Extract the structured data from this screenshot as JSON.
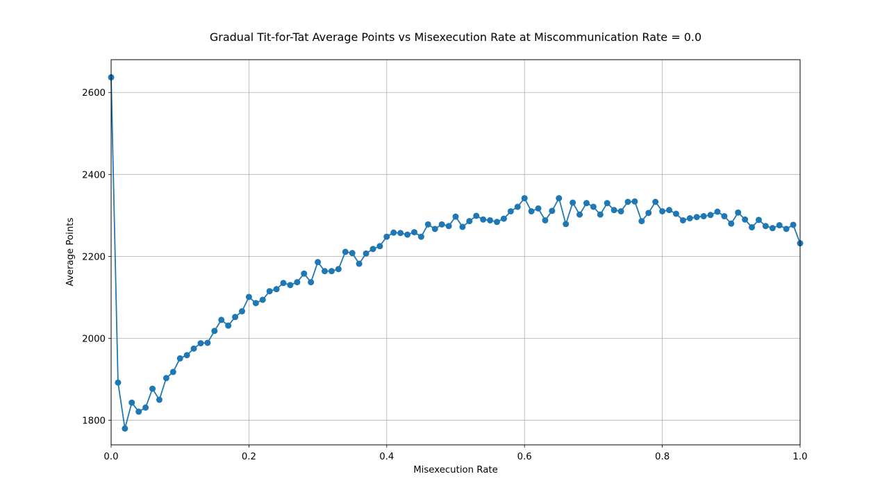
{
  "chart_data": {
    "type": "line",
    "title": "Gradual Tit-for-Tat Average Points vs Misexecution Rate at Miscommunication Rate = 0.0",
    "xlabel": "Misexecution Rate",
    "ylabel": "Average Points",
    "xlim": [
      0.0,
      1.0
    ],
    "ylim": [
      1740,
      2680
    ],
    "x_ticks": [
      "0.0",
      "0.2",
      "0.4",
      "0.6",
      "0.8",
      "1.0"
    ],
    "y_ticks": [
      "1800",
      "2000",
      "2200",
      "2400",
      "2600"
    ],
    "grid": true,
    "legend": "none",
    "color": "#1f77b4",
    "marker": "circle",
    "series": [
      {
        "x": [
          0.0,
          0.01,
          0.02,
          0.03,
          0.04,
          0.05,
          0.06,
          0.07,
          0.08,
          0.09,
          0.1,
          0.11,
          0.12,
          0.13,
          0.14,
          0.15,
          0.16,
          0.17,
          0.18,
          0.19,
          0.2,
          0.21,
          0.22,
          0.23,
          0.24,
          0.25,
          0.26,
          0.27,
          0.28,
          0.29,
          0.3,
          0.31,
          0.32,
          0.33,
          0.34,
          0.35,
          0.36,
          0.37,
          0.38,
          0.39,
          0.4,
          0.41,
          0.42,
          0.43,
          0.44,
          0.45,
          0.46,
          0.47,
          0.48,
          0.49,
          0.5,
          0.51,
          0.52,
          0.53,
          0.54,
          0.55,
          0.56,
          0.57,
          0.58,
          0.59,
          0.6,
          0.61,
          0.62,
          0.63,
          0.64,
          0.65,
          0.66,
          0.67,
          0.68,
          0.69,
          0.7,
          0.71,
          0.72,
          0.73,
          0.74,
          0.75,
          0.76,
          0.77,
          0.78,
          0.79,
          0.8,
          0.81,
          0.82,
          0.83,
          0.84,
          0.85,
          0.86,
          0.87,
          0.88,
          0.89,
          0.9,
          0.91,
          0.92,
          0.93,
          0.94,
          0.95,
          0.96,
          0.97,
          0.98,
          0.99,
          1.0
        ],
        "y": [
          2637,
          1892,
          1780,
          1843,
          1821,
          1831,
          1877,
          1850,
          1903,
          1918,
          1951,
          1959,
          1975,
          1988,
          1989,
          2018,
          2045,
          2031,
          2052,
          2066,
          2101,
          2086,
          2094,
          2115,
          2120,
          2135,
          2130,
          2137,
          2158,
          2137,
          2186,
          2164,
          2164,
          2169,
          2211,
          2208,
          2182,
          2207,
          2218,
          2225,
          2248,
          2258,
          2257,
          2253,
          2259,
          2248,
          2278,
          2267,
          2278,
          2274,
          2297,
          2272,
          2286,
          2299,
          2290,
          2288,
          2284,
          2292,
          2310,
          2321,
          2342,
          2310,
          2317,
          2288,
          2311,
          2342,
          2279,
          2331,
          2302,
          2330,
          2321,
          2302,
          2330,
          2313,
          2310,
          2333,
          2334,
          2286,
          2306,
          2333,
          2310,
          2313,
          2304,
          2288,
          2293,
          2296,
          2298,
          2301,
          2309,
          2298,
          2280,
          2307,
          2290,
          2271,
          2289,
          2274,
          2269,
          2276,
          2267,
          2277,
          2232
        ]
      }
    ]
  }
}
